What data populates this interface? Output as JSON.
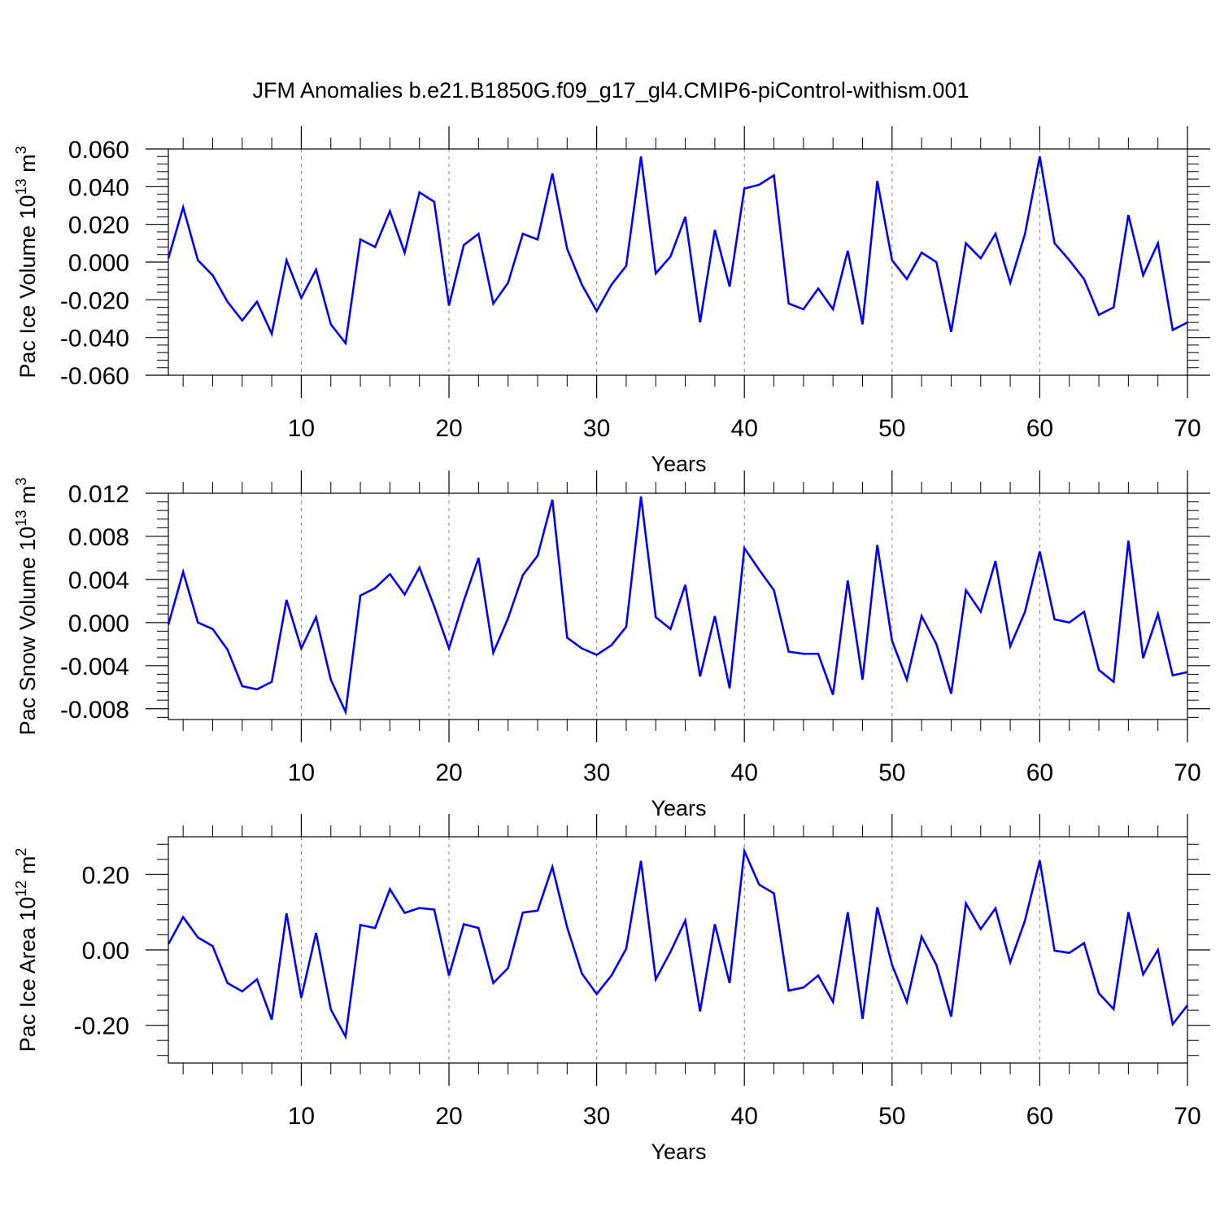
{
  "title": "JFM Anomalies b.e21.B1850G.f09_g17_gl4.CMIP6-piControl-withism.001",
  "colors": {
    "line": "#0000ff",
    "axis": "#000000",
    "grid": "#808080"
  },
  "chart_data": [
    {
      "type": "line",
      "xlabel": "Years",
      "ylabel": "Pac Ice Volume 10",
      "ylabel_exp1": "13",
      "ylabel_unit": " m",
      "ylabel_exp2": "3",
      "xlim": [
        1,
        70
      ],
      "ylim": [
        -0.06,
        0.06
      ],
      "xticks": [
        10,
        20,
        30,
        40,
        50,
        60,
        70
      ],
      "yticks": [
        -0.06,
        -0.04,
        -0.02,
        0.0,
        0.02,
        0.04,
        0.06
      ],
      "yticklabels": [
        "-0.060",
        "-0.040",
        "-0.020",
        "0.000",
        "0.020",
        "0.040",
        "0.060"
      ],
      "grid_x": true,
      "x": [
        1,
        2,
        3,
        4,
        5,
        6,
        7,
        8,
        9,
        10,
        11,
        12,
        13,
        14,
        15,
        16,
        17,
        18,
        19,
        20,
        21,
        22,
        23,
        24,
        25,
        26,
        27,
        28,
        29,
        30,
        31,
        32,
        33,
        34,
        35,
        36,
        37,
        38,
        39,
        40,
        41,
        42,
        43,
        44,
        45,
        46,
        47,
        48,
        49,
        50,
        51,
        52,
        53,
        54,
        55,
        56,
        57,
        58,
        59,
        60,
        61,
        62,
        63,
        64,
        65,
        66,
        67,
        68,
        69,
        70
      ],
      "values": [
        0.002,
        0.029,
        0.001,
        -0.007,
        -0.021,
        -0.031,
        -0.021,
        -0.038,
        0.001,
        -0.019,
        -0.004,
        -0.033,
        -0.043,
        0.012,
        0.008,
        0.027,
        0.005,
        0.037,
        0.032,
        -0.023,
        0.009,
        0.015,
        -0.022,
        -0.011,
        0.015,
        0.012,
        0.047,
        0.007,
        -0.012,
        -0.026,
        -0.012,
        -0.002,
        0.056,
        -0.006,
        0.003,
        0.024,
        -0.032,
        0.017,
        -0.013,
        0.039,
        0.041,
        0.046,
        -0.022,
        -0.025,
        -0.014,
        -0.025,
        0.006,
        -0.033,
        0.043,
        0.001,
        -0.009,
        0.005,
        0.0,
        -0.037,
        0.01,
        0.002,
        0.015,
        -0.011,
        0.015,
        0.056,
        0.01,
        0.001,
        -0.009,
        -0.028,
        -0.024,
        0.025,
        -0.007,
        0.01,
        -0.036,
        -0.032
      ]
    },
    {
      "type": "line",
      "xlabel": "Years",
      "ylabel": "Pac Snow Volume 10",
      "ylabel_exp1": "13",
      "ylabel_unit": " m",
      "ylabel_exp2": "3",
      "xlim": [
        1,
        70
      ],
      "ylim": [
        -0.009,
        0.012
      ],
      "xticks": [
        10,
        20,
        30,
        40,
        50,
        60,
        70
      ],
      "yticks": [
        -0.008,
        -0.004,
        0.0,
        0.004,
        0.008,
        0.012
      ],
      "yticklabels": [
        "-0.008",
        "-0.004",
        "0.000",
        "0.004",
        "0.008",
        "0.012"
      ],
      "grid_x": true,
      "x": [
        1,
        2,
        3,
        4,
        5,
        6,
        7,
        8,
        9,
        10,
        11,
        12,
        13,
        14,
        15,
        16,
        17,
        18,
        19,
        20,
        21,
        22,
        23,
        24,
        25,
        26,
        27,
        28,
        29,
        30,
        31,
        32,
        33,
        34,
        35,
        36,
        37,
        38,
        39,
        40,
        41,
        42,
        43,
        44,
        45,
        46,
        47,
        48,
        49,
        50,
        51,
        52,
        53,
        54,
        55,
        56,
        57,
        58,
        59,
        60,
        61,
        62,
        63,
        64,
        65,
        66,
        67,
        68,
        69,
        70
      ],
      "values": [
        -0.0002,
        0.0047,
        0.0,
        -0.0006,
        -0.0025,
        -0.0059,
        -0.0062,
        -0.0055,
        0.0021,
        -0.0024,
        0.0005,
        -0.0053,
        -0.0083,
        0.0025,
        0.0032,
        0.0045,
        0.0026,
        0.0051,
        0.0015,
        -0.0024,
        0.002,
        0.006,
        -0.0028,
        0.0004,
        0.0044,
        0.0062,
        0.0114,
        -0.0014,
        -0.0024,
        -0.003,
        -0.0021,
        -0.0004,
        0.0117,
        0.0005,
        -0.0006,
        0.0035,
        -0.005,
        0.0006,
        -0.0061,
        0.0069,
        0.0049,
        0.003,
        -0.0027,
        -0.0029,
        -0.0029,
        -0.0067,
        0.0039,
        -0.0053,
        0.0072,
        -0.0017,
        -0.0053,
        0.0006,
        -0.002,
        -0.0066,
        0.003,
        0.001,
        0.0057,
        -0.0022,
        0.001,
        0.0066,
        0.0003,
        0.0,
        0.001,
        -0.0044,
        -0.0055,
        0.0076,
        -0.0033,
        0.0008,
        -0.0049,
        -0.0046
      ]
    },
    {
      "type": "line",
      "xlabel": "Years",
      "ylabel": "Pac Ice Area 10",
      "ylabel_exp1": "12",
      "ylabel_unit": " m",
      "ylabel_exp2": "2",
      "xlim": [
        1,
        70
      ],
      "ylim": [
        -0.3,
        0.3
      ],
      "xticks": [
        10,
        20,
        30,
        40,
        50,
        60,
        70
      ],
      "yticks": [
        -0.2,
        0.0,
        0.2
      ],
      "yticklabels": [
        "-0.20",
        "0.00",
        "0.20"
      ],
      "grid_x": true,
      "x": [
        1,
        2,
        3,
        4,
        5,
        6,
        7,
        8,
        9,
        10,
        11,
        12,
        13,
        14,
        15,
        16,
        17,
        18,
        19,
        20,
        21,
        22,
        23,
        24,
        25,
        26,
        27,
        28,
        29,
        30,
        31,
        32,
        33,
        34,
        35,
        36,
        37,
        38,
        39,
        40,
        41,
        42,
        43,
        44,
        45,
        46,
        47,
        48,
        49,
        50,
        51,
        52,
        53,
        54,
        55,
        56,
        57,
        58,
        59,
        60,
        61,
        62,
        63,
        64,
        65,
        66,
        67,
        68,
        69,
        70
      ],
      "values": [
        0.015,
        0.087,
        0.033,
        0.01,
        -0.088,
        -0.11,
        -0.078,
        -0.185,
        0.097,
        -0.127,
        0.045,
        -0.158,
        -0.23,
        0.066,
        0.058,
        0.161,
        0.098,
        0.111,
        0.107,
        -0.068,
        0.068,
        0.058,
        -0.088,
        -0.048,
        0.099,
        0.104,
        0.22,
        0.06,
        -0.063,
        -0.117,
        -0.068,
        0.003,
        0.236,
        -0.078,
        -0.005,
        0.078,
        -0.163,
        0.068,
        -0.088,
        0.262,
        0.173,
        0.15,
        -0.108,
        -0.1,
        -0.068,
        -0.138,
        0.1,
        -0.183,
        0.113,
        -0.04,
        -0.138,
        0.035,
        -0.04,
        -0.177,
        0.123,
        0.055,
        0.11,
        -0.033,
        0.078,
        0.237,
        -0.002,
        -0.008,
        0.018,
        -0.115,
        -0.157,
        0.1,
        -0.065,
        0.0,
        -0.197,
        -0.147
      ]
    }
  ]
}
